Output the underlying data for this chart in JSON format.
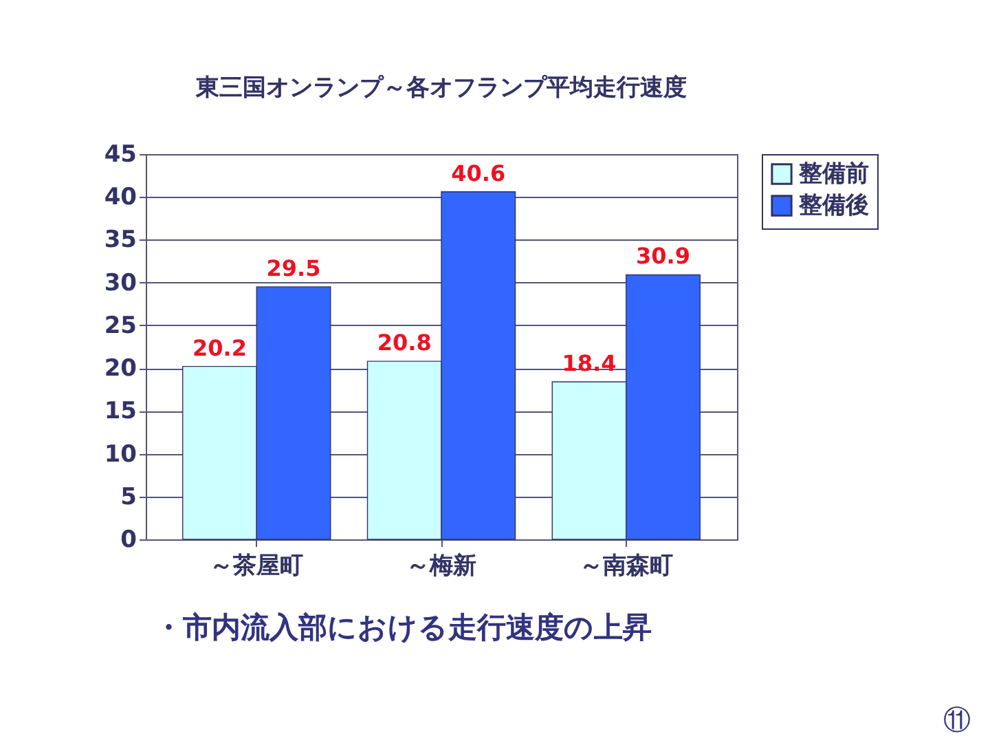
{
  "chart_data": {
    "type": "bar",
    "title": "東三国オンランプ～各オフランプ平均走行速度",
    "categories": [
      "～茶屋町",
      "～梅新",
      "～南森町"
    ],
    "series": [
      {
        "name": "整備前",
        "color": "#ccffff",
        "values": [
          20.2,
          20.8,
          18.4
        ]
      },
      {
        "name": "整備後",
        "color": "#3366ff",
        "values": [
          29.5,
          40.6,
          30.9
        ]
      }
    ],
    "ylim": [
      0,
      45
    ],
    "yticks": [
      0,
      5,
      10,
      15,
      20,
      25,
      30,
      35,
      40,
      45
    ],
    "grid": "y",
    "legend": "right",
    "data_labels": true,
    "annotations": [
      "・市内流入部における走行速度の上昇",
      "⑪"
    ]
  }
}
